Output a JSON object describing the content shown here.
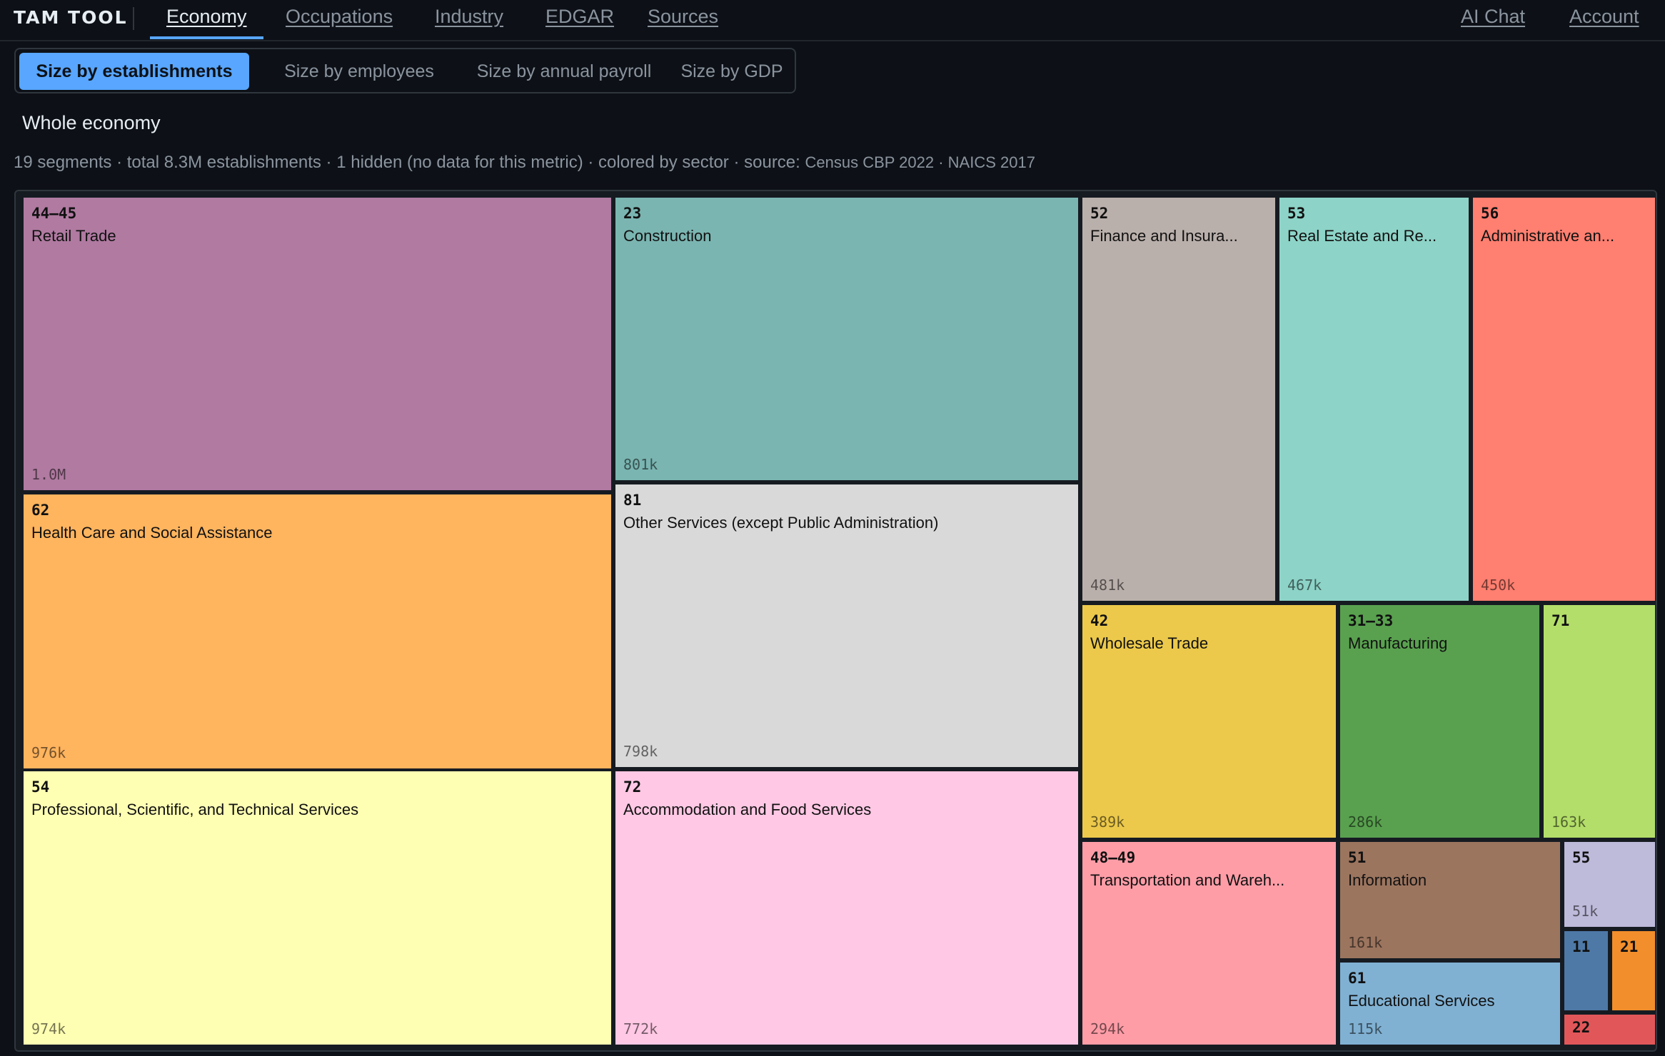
{
  "brand": "TAM TOOL",
  "nav": {
    "left": [
      "Economy",
      "Occupations",
      "Industry",
      "EDGAR",
      "Sources"
    ],
    "right": [
      "AI Chat",
      "Account"
    ],
    "active": "Economy"
  },
  "size_modes": {
    "options": [
      "Size by establishments",
      "Size by employees",
      "Size by annual payroll",
      "Size by GDP"
    ],
    "selected": "Size by establishments"
  },
  "subtitle": "Whole economy",
  "meta": {
    "summary": "19 segments · total 8.3M establishments · 1 hidden (no data for this metric) · colored by sector · source: ",
    "source": "Census CBP 2022 · NAICS 2017"
  },
  "segments": [
    {
      "code": "44–45",
      "name": "Retail Trade",
      "value": "1.0M",
      "color": "#b07aa1"
    },
    {
      "code": "62",
      "name": "Health Care and Social Assistance",
      "value": "976k",
      "color": "#ffb45e"
    },
    {
      "code": "54",
      "name": "Professional, Scientific, and Technical Services",
      "value": "974k",
      "color": "#ffffb3"
    },
    {
      "code": "23",
      "name": "Construction",
      "value": "801k",
      "color": "#7ab5b1"
    },
    {
      "code": "81",
      "name": "Other Services (except Public Administration)",
      "value": "798k",
      "color": "#d9d9d9"
    },
    {
      "code": "72",
      "name": "Accommodation and Food Services",
      "value": "772k",
      "color": "#ffc8e4"
    },
    {
      "code": "52",
      "name": "Finance and Insura...",
      "value": "481k",
      "color": "#bab0ab"
    },
    {
      "code": "53",
      "name": "Real Estate and Re...",
      "value": "467k",
      "color": "#8dd3c7"
    },
    {
      "code": "56",
      "name": "Administrative an...",
      "value": "450k",
      "color": "#ff7f70"
    },
    {
      "code": "42",
      "name": "Wholesale Trade",
      "value": "389k",
      "color": "#ecc94b"
    },
    {
      "code": "31–33",
      "name": "Manufacturing",
      "value": "286k",
      "color": "#59a14f"
    },
    {
      "code": "71",
      "name": "",
      "value": "163k",
      "color": "#b3de69"
    },
    {
      "code": "48–49",
      "name": "Transportation and Wareh...",
      "value": "294k",
      "color": "#ff9da7"
    },
    {
      "code": "51",
      "name": "Information",
      "value": "161k",
      "color": "#9c755f"
    },
    {
      "code": "55",
      "name": "",
      "value": "51k",
      "color": "#bebada"
    },
    {
      "code": "61",
      "name": "Educational Services",
      "value": "115k",
      "color": "#80b1d3"
    },
    {
      "code": "11",
      "name": "",
      "value": "",
      "color": "#4e79a7"
    },
    {
      "code": "21",
      "name": "",
      "value": "",
      "color": "#f28e2b"
    },
    {
      "code": "22",
      "name": "",
      "value": "",
      "color": "#e15759"
    }
  ]
}
